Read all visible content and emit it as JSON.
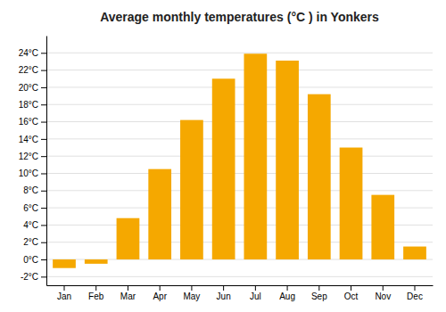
{
  "chart_data": {
    "type": "bar",
    "title": "Average monthly temperatures (°C ) in Yonkers",
    "categories": [
      "Jan",
      "Feb",
      "Mar",
      "Apr",
      "May",
      "Jun",
      "Jul",
      "Aug",
      "Sep",
      "Oct",
      "Nov",
      "Dec"
    ],
    "values": [
      -1.0,
      -0.5,
      4.8,
      10.5,
      16.2,
      21.0,
      23.9,
      23.1,
      19.2,
      13.0,
      7.5,
      1.5
    ],
    "color": "#F5A800",
    "ylim": [
      -3,
      26
    ],
    "yticks": [
      {
        "value": -2,
        "label": "-2°C"
      },
      {
        "value": 0,
        "label": "0°C"
      },
      {
        "value": 2,
        "label": "2°C"
      },
      {
        "value": 4,
        "label": "4°C"
      },
      {
        "value": 6,
        "label": "6°C"
      },
      {
        "value": 8,
        "label": "8°C"
      },
      {
        "value": 10,
        "label": "10°C"
      },
      {
        "value": 12,
        "label": "12°C"
      },
      {
        "value": 14,
        "label": "14°C"
      },
      {
        "value": 16,
        "label": "16°C"
      },
      {
        "value": 18,
        "label": "18°C"
      },
      {
        "value": 20,
        "label": "20°C"
      },
      {
        "value": 22,
        "label": "22°C"
      },
      {
        "value": 24,
        "label": "24°C"
      }
    ],
    "grid": true
  }
}
